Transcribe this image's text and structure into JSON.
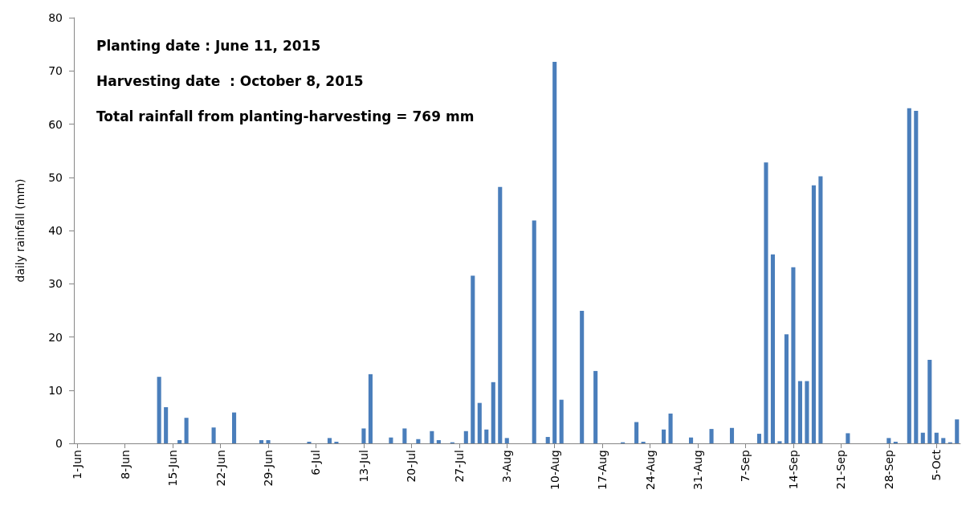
{
  "chart_data": {
    "type": "bar",
    "ylabel": "daily rainfall (mm)",
    "color": "#4a7ebb",
    "annotations": [
      "Planting date : June 11, 2015",
      "Harvesting date  : October 8, 2015",
      "Total rainfall from planting-harvesting = 769 mm"
    ],
    "categories": [
      "1-Jun",
      null,
      null,
      null,
      null,
      null,
      null,
      "8-Jun",
      null,
      null,
      null,
      null,
      null,
      null,
      "15-Jun",
      null,
      null,
      null,
      null,
      null,
      null,
      "22-Jun",
      null,
      null,
      null,
      null,
      null,
      null,
      "29-Jun",
      null,
      null,
      null,
      null,
      null,
      null,
      "6-Jul",
      null,
      null,
      null,
      null,
      null,
      null,
      "13-Jul",
      null,
      null,
      null,
      null,
      null,
      null,
      "20-Jul",
      null,
      null,
      null,
      null,
      null,
      null,
      "27-Jul",
      null,
      null,
      null,
      null,
      null,
      null,
      "3-Aug",
      null,
      null,
      null,
      null,
      null,
      null,
      "10-Aug",
      null,
      null,
      null,
      null,
      null,
      null,
      "17-Aug",
      null,
      null,
      null,
      null,
      null,
      null,
      "24-Aug",
      null,
      null,
      null,
      null,
      null,
      null,
      "31-Aug",
      null,
      null,
      null,
      null,
      null,
      null,
      "7-Sep",
      null,
      null,
      null,
      null,
      null,
      null,
      "14-Sep",
      null,
      null,
      null,
      null,
      null,
      null,
      "21-Sep",
      null,
      null,
      null,
      null,
      null,
      null,
      "28-Sep",
      null,
      null,
      null,
      null,
      null,
      null,
      "5-Oct",
      null,
      null,
      null
    ],
    "values": [
      0,
      0,
      0,
      0,
      0,
      0,
      0,
      0,
      0,
      0,
      0,
      0,
      12.5,
      6.8,
      0,
      0.6,
      4.8,
      0,
      0,
      0,
      3.0,
      0,
      0,
      5.8,
      0,
      0,
      0,
      0.6,
      0.6,
      0,
      0,
      0,
      0,
      0,
      0.3,
      0,
      0,
      1.0,
      0.3,
      0,
      0,
      0,
      2.8,
      13.0,
      0,
      0,
      1.1,
      0,
      2.8,
      0,
      0.8,
      0,
      2.3,
      0.6,
      0,
      0.2,
      0,
      2.3,
      31.5,
      7.6,
      2.6,
      11.5,
      48.2,
      1.0,
      0,
      0,
      0,
      41.9,
      0,
      1.2,
      71.7,
      8.2,
      0,
      0,
      24.9,
      0,
      13.6,
      0,
      0,
      0,
      0.2,
      0,
      4.0,
      0.3,
      0,
      0,
      2.6,
      5.6,
      0,
      0,
      1.1,
      0,
      0,
      2.7,
      0,
      0,
      2.9,
      0,
      0,
      0,
      1.8,
      52.8,
      35.5,
      0.4,
      20.5,
      33.1,
      11.7,
      11.7,
      48.5,
      50.2,
      0,
      0,
      0,
      1.9,
      0,
      0,
      0,
      0,
      0,
      1.0,
      0.3,
      0,
      63.0,
      62.5,
      2.0,
      15.7,
      2.0,
      1.0,
      0.2,
      4.5
    ],
    "ylim": [
      0,
      80
    ],
    "yticks": [
      0,
      10,
      20,
      30,
      40,
      50,
      60,
      70,
      80
    ],
    "grid": false
  }
}
